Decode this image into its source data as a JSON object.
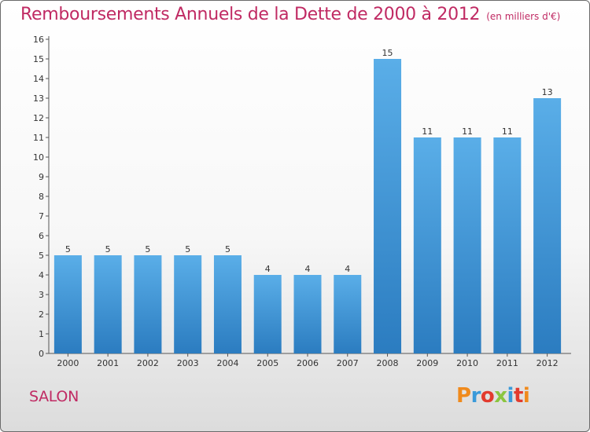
{
  "header": {
    "title": "Remboursements Annuels de la Dette de 2000 à 2012",
    "subtitle": "(en milliers d'€)"
  },
  "footer": {
    "commune": "SALON",
    "logo_text": "Proxiti"
  },
  "colors": {
    "title": "#c02a63",
    "bar_top": "#5aaee8",
    "bar_bottom": "#2b7cc0",
    "logo_letters": [
      "#f08a1c",
      "#3a9ad9",
      "#e23b2e",
      "#8bc53f",
      "#3a9ad9",
      "#e23b2e",
      "#f08a1c"
    ]
  },
  "chart_data": {
    "type": "bar",
    "categories": [
      "2000",
      "2001",
      "2002",
      "2003",
      "2004",
      "2005",
      "2006",
      "2007",
      "2008",
      "2009",
      "2010",
      "2011",
      "2012"
    ],
    "values": [
      5,
      5,
      5,
      5,
      5,
      4,
      4,
      4,
      15,
      11,
      11,
      11,
      13
    ],
    "y_ticks": [
      "0",
      "1",
      "2",
      "3",
      "4",
      "5",
      "6",
      "7",
      "8",
      "9",
      "10",
      "11",
      "12",
      "13",
      "14",
      "15",
      "16"
    ],
    "ylim": [
      0,
      16
    ],
    "grid": false,
    "data_labels": true
  }
}
